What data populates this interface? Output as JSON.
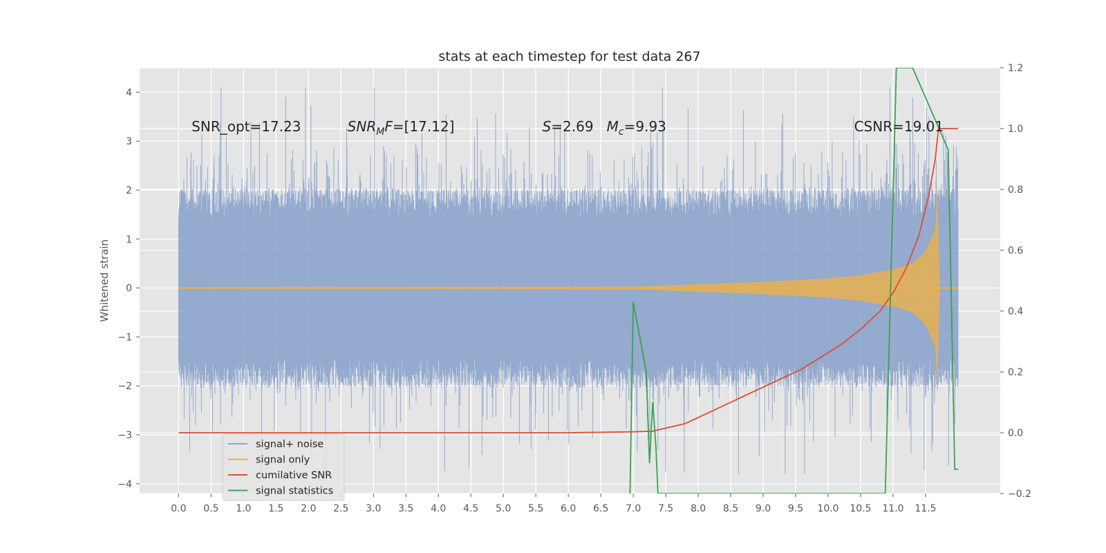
{
  "chart_data": {
    "type": "line",
    "title": "stats at each timestep for test data 267",
    "ylabel": "Whitened strain",
    "xlabel": "",
    "xlim": [
      -0.6,
      12.65
    ],
    "ylim": [
      -4.2,
      4.5
    ],
    "y2lim": [
      -0.2,
      1.2
    ],
    "grid": true,
    "x_ticks": [
      0.0,
      0.5,
      1.0,
      1.5,
      2.0,
      2.5,
      3.0,
      3.5,
      4.0,
      4.5,
      5.0,
      5.5,
      6.0,
      6.5,
      7.0,
      7.5,
      8.0,
      8.5,
      9.0,
      9.5,
      10.0,
      10.5,
      11.0,
      11.5
    ],
    "x_tick_labels": [
      "0.0",
      "0.5",
      "1.0",
      "1.5",
      "2.0",
      "2.5",
      "3.0",
      "3.5",
      "4.0",
      "4.5",
      "5.0",
      "5.5",
      "6.0",
      "6.5",
      "7.0",
      "7.5",
      "8.0",
      "8.5",
      "9.0",
      "9.5",
      "10.0",
      "10.5",
      "11.0",
      "11.5"
    ],
    "y_ticks": [
      4,
      3,
      2,
      1,
      0,
      -1,
      -2,
      -3,
      -4
    ],
    "y_tick_labels": [
      "4",
      "3",
      "2",
      "1",
      "0",
      "−1",
      "−2",
      "−3",
      "−4"
    ],
    "y2_ticks": [
      1.2,
      1.0,
      0.8,
      0.6,
      0.4,
      0.2,
      0.0,
      -0.2
    ],
    "y2_tick_labels": [
      "1.2",
      "1.0",
      "0.8",
      "0.6",
      "0.4",
      "0.2",
      "0.0",
      "−0.2"
    ],
    "annotations": [
      {
        "text": "SNR_opt=17.23",
        "x": 0.2,
        "y": 3.2
      },
      {
        "text": "SNR_MF=[17.12]",
        "x": 2.6,
        "y": 3.2
      },
      {
        "text": "S=2.69   M_c=9.93",
        "x": 5.6,
        "y": 3.2
      },
      {
        "text": "CSNR=19.01",
        "x": 10.4,
        "y": 3.2
      }
    ],
    "legend": {
      "location": "lower-left",
      "entries": [
        "signal+ noise",
        "signal only",
        "cumilative SNR",
        "signal statistics"
      ]
    },
    "series": [
      {
        "name": "signal+ noise",
        "axis": "left",
        "style": "noise-band",
        "x_range": [
          0.0,
          12.0
        ],
        "typical_amplitude": 1.7,
        "max": 4.1,
        "min": -3.8
      },
      {
        "name": "signal only",
        "axis": "left",
        "style": "chirp",
        "x": [
          0.0,
          7.0,
          7.5,
          8.0,
          8.5,
          9.0,
          9.5,
          10.0,
          10.5,
          11.0,
          11.3,
          11.5,
          11.65,
          11.68,
          11.72,
          11.9,
          12.0
        ],
        "envelope": [
          0.02,
          0.03,
          0.05,
          0.08,
          0.1,
          0.13,
          0.16,
          0.2,
          0.26,
          0.38,
          0.5,
          0.75,
          1.2,
          2.1,
          0.02,
          0.02,
          0.02
        ]
      },
      {
        "name": "cumilative SNR",
        "axis": "right",
        "x": [
          0.0,
          6.0,
          7.0,
          7.3,
          7.5,
          7.8,
          8.0,
          8.3,
          8.6,
          9.0,
          9.3,
          9.6,
          9.9,
          10.2,
          10.5,
          10.8,
          11.0,
          11.2,
          11.4,
          11.55,
          11.65,
          11.7,
          11.9,
          12.0
        ],
        "values": [
          0.0,
          0.0,
          0.003,
          0.005,
          0.015,
          0.03,
          0.05,
          0.08,
          0.11,
          0.15,
          0.18,
          0.21,
          0.25,
          0.29,
          0.34,
          0.4,
          0.46,
          0.54,
          0.65,
          0.78,
          0.9,
          1.0,
          1.0,
          1.0
        ]
      },
      {
        "name": "signal statistics",
        "axis": "right",
        "x": [
          6.95,
          7.0,
          7.2,
          7.25,
          7.3,
          7.35,
          7.38,
          10.88,
          11.05,
          11.25,
          11.3,
          11.85,
          11.95,
          12.0
        ],
        "values": [
          -0.2,
          0.43,
          0.2,
          -0.1,
          0.1,
          -0.05,
          -0.2,
          -0.2,
          1.2,
          1.2,
          1.2,
          0.93,
          -0.12,
          -0.12
        ]
      }
    ]
  },
  "colors": {
    "axes_bg": "#e5e5e5",
    "grid": "#ffffff",
    "signal_noise": "#8da5cc",
    "signal_only": "#e8b150",
    "cumulative_snr": "#e24a33",
    "signal_statistics": "#3ba24f"
  }
}
